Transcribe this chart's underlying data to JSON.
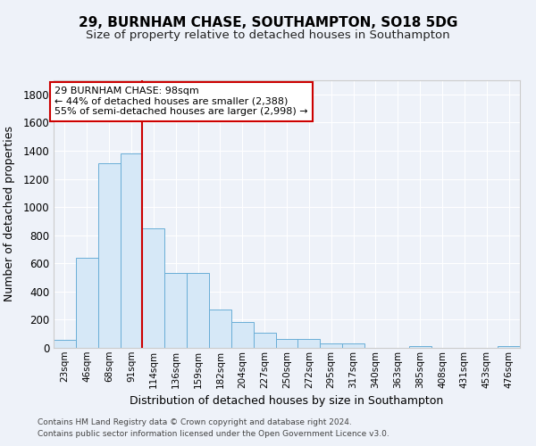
{
  "title1": "29, BURNHAM CHASE, SOUTHAMPTON, SO18 5DG",
  "title2": "Size of property relative to detached houses in Southampton",
  "xlabel": "Distribution of detached houses by size in Southampton",
  "ylabel": "Number of detached properties",
  "categories": [
    "23sqm",
    "46sqm",
    "68sqm",
    "91sqm",
    "114sqm",
    "136sqm",
    "159sqm",
    "182sqm",
    "204sqm",
    "227sqm",
    "250sqm",
    "272sqm",
    "295sqm",
    "317sqm",
    "340sqm",
    "363sqm",
    "385sqm",
    "408sqm",
    "431sqm",
    "453sqm",
    "476sqm"
  ],
  "values": [
    55,
    640,
    1310,
    1380,
    850,
    530,
    530,
    275,
    185,
    105,
    65,
    65,
    30,
    30,
    0,
    0,
    15,
    0,
    0,
    0,
    10
  ],
  "bar_color": "#d6e8f7",
  "bar_edge_color": "#6aaed6",
  "red_line_x": 3.5,
  "annotation_line1": "29 BURNHAM CHASE: 98sqm",
  "annotation_line2": "← 44% of detached houses are smaller (2,388)",
  "annotation_line3": "55% of semi-detached houses are larger (2,998) →",
  "annotation_box_color": "#ffffff",
  "annotation_box_edge": "#cc0000",
  "ylim": [
    0,
    1900
  ],
  "yticks": [
    0,
    200,
    400,
    600,
    800,
    1000,
    1200,
    1400,
    1600,
    1800
  ],
  "footer1": "Contains HM Land Registry data © Crown copyright and database right 2024.",
  "footer2": "Contains public sector information licensed under the Open Government Licence v3.0.",
  "bg_color": "#eef2f9",
  "grid_color": "#ffffff",
  "title1_fontsize": 11,
  "title2_fontsize": 9.5
}
